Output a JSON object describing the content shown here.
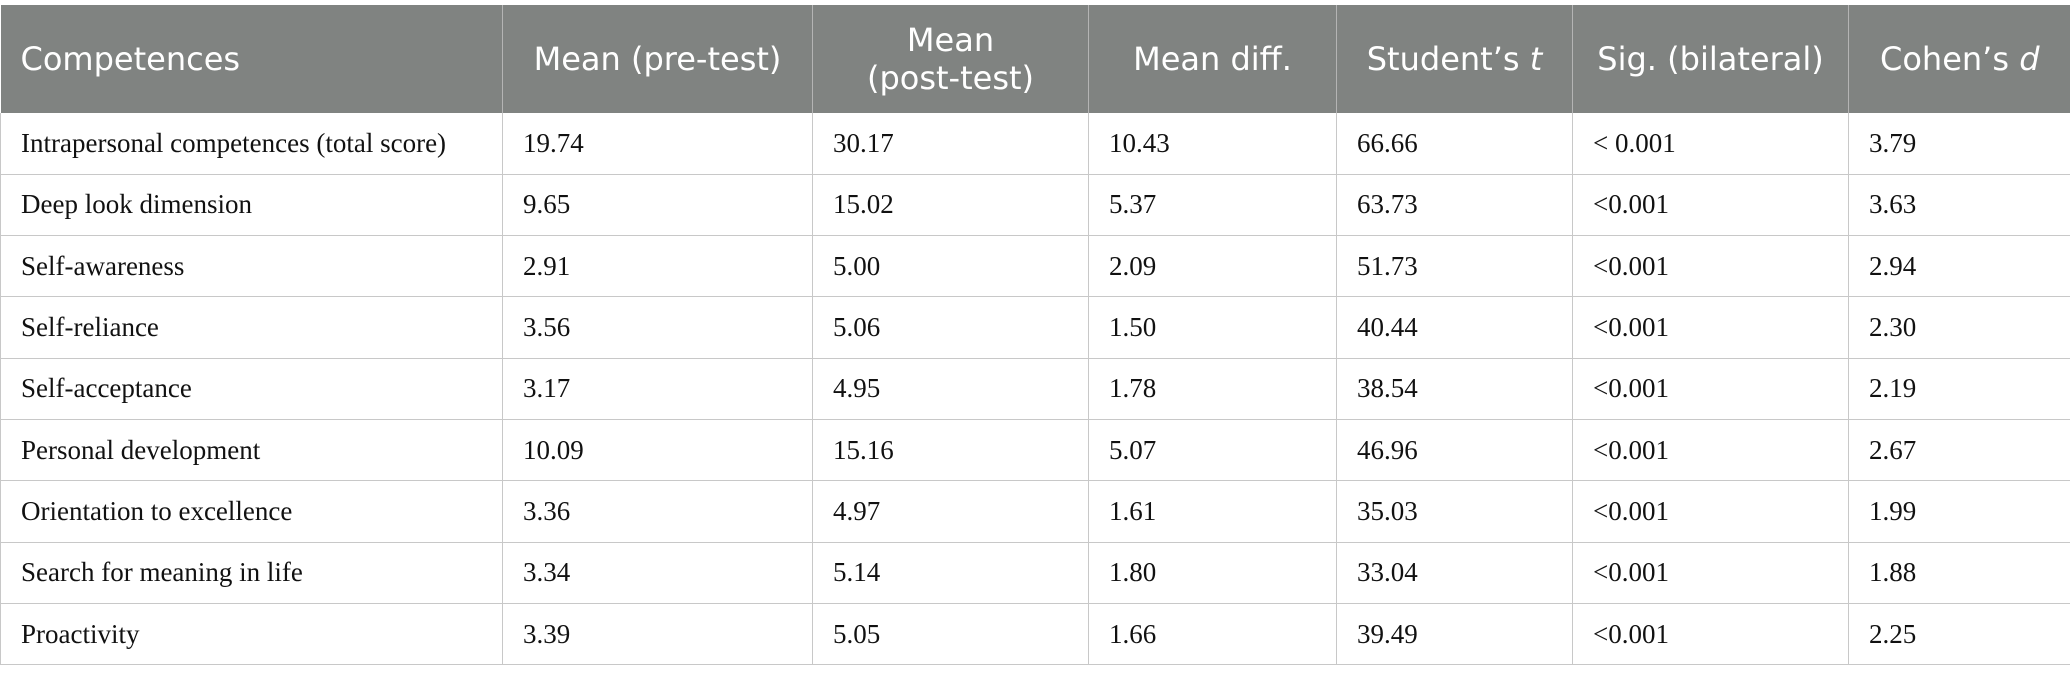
{
  "table": {
    "headers": {
      "competences": "Competences",
      "mean_pre": "Mean (pre-test)",
      "mean_post_line1": "Mean",
      "mean_post_line2": "(post-test)",
      "mean_diff": "Mean diff.",
      "students_t_prefix": "Student’s ",
      "students_t_var": "t",
      "sig": "Sig. (bilateral)",
      "cohens_d_prefix": "Cohen’s ",
      "cohens_d_var": "d"
    },
    "rows": [
      {
        "competence": "Intrapersonal competences (total score)",
        "mean_pre": "19.74",
        "mean_post": "30.17",
        "mean_diff": "10.43",
        "t": "66.66",
        "sig": "< 0.001",
        "d": "3.79"
      },
      {
        "competence": "Deep look dimension",
        "mean_pre": "9.65",
        "mean_post": "15.02",
        "mean_diff": "5.37",
        "t": "63.73",
        "sig": "<0.001",
        "d": "3.63"
      },
      {
        "competence": "Self-awareness",
        "mean_pre": "2.91",
        "mean_post": "5.00",
        "mean_diff": "2.09",
        "t": "51.73",
        "sig": "<0.001",
        "d": "2.94"
      },
      {
        "competence": "Self-reliance",
        "mean_pre": "3.56",
        "mean_post": "5.06",
        "mean_diff": "1.50",
        "t": "40.44",
        "sig": "<0.001",
        "d": "2.30"
      },
      {
        "competence": "Self-acceptance",
        "mean_pre": "3.17",
        "mean_post": "4.95",
        "mean_diff": "1.78",
        "t": "38.54",
        "sig": "<0.001",
        "d": "2.19"
      },
      {
        "competence": "Personal development",
        "mean_pre": "10.09",
        "mean_post": "15.16",
        "mean_diff": "5.07",
        "t": "46.96",
        "sig": "<0.001",
        "d": "2.67"
      },
      {
        "competence": "Orientation to excellence",
        "mean_pre": "3.36",
        "mean_post": "4.97",
        "mean_diff": "1.61",
        "t": "35.03",
        "sig": "<0.001",
        "d": "1.99"
      },
      {
        "competence": "Search for meaning in life",
        "mean_pre": "3.34",
        "mean_post": "5.14",
        "mean_diff": "1.80",
        "t": "33.04",
        "sig": "<0.001",
        "d": "1.88"
      },
      {
        "competence": "Proactivity",
        "mean_pre": "3.39",
        "mean_post": "5.05",
        "mean_diff": "1.66",
        "t": "39.49",
        "sig": "<0.001",
        "d": "2.25"
      }
    ]
  }
}
